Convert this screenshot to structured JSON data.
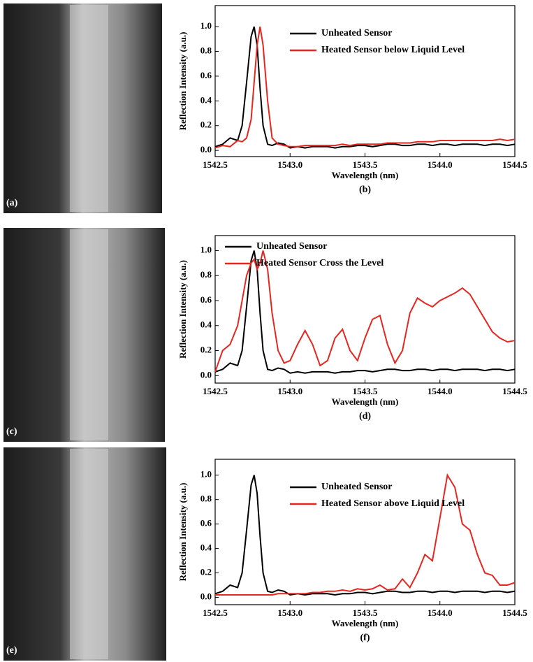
{
  "photos": [
    {
      "label": "(a)"
    },
    {
      "label": "(c)"
    },
    {
      "label": "(e)"
    }
  ],
  "chart_data": [
    {
      "type": "line",
      "caption": "(b)",
      "x_label": "Wavelength (nm)",
      "y_label": "Reflection Intensity (a.u.)",
      "legend": "upper center",
      "x": [
        1542.5,
        1542.55,
        1542.6,
        1542.65,
        1542.68,
        1542.71,
        1542.74,
        1542.76,
        1542.78,
        1542.8,
        1542.82,
        1542.85,
        1542.88,
        1542.92,
        1542.96,
        1543.0,
        1543.05,
        1543.1,
        1543.15,
        1543.2,
        1543.25,
        1543.3,
        1543.35,
        1543.4,
        1543.45,
        1543.5,
        1543.55,
        1543.6,
        1543.65,
        1543.7,
        1543.75,
        1543.8,
        1543.85,
        1543.9,
        1543.95,
        1544.0,
        1544.05,
        1544.1,
        1544.15,
        1544.2,
        1544.25,
        1544.3,
        1544.35,
        1544.4,
        1544.45,
        1544.5
      ],
      "series": [
        {
          "name": "Unheated Sensor",
          "color": "#000000",
          "values": [
            0.03,
            0.05,
            0.1,
            0.08,
            0.2,
            0.55,
            0.92,
            1.0,
            0.85,
            0.5,
            0.2,
            0.05,
            0.04,
            0.06,
            0.05,
            0.02,
            0.03,
            0.02,
            0.03,
            0.03,
            0.03,
            0.02,
            0.03,
            0.03,
            0.04,
            0.04,
            0.03,
            0.04,
            0.05,
            0.05,
            0.04,
            0.04,
            0.05,
            0.05,
            0.04,
            0.05,
            0.05,
            0.04,
            0.05,
            0.05,
            0.05,
            0.04,
            0.05,
            0.05,
            0.04,
            0.05
          ]
        },
        {
          "name": "Heated Sensor below Liquid Level",
          "color": "#e8251f",
          "values": [
            0.02,
            0.04,
            0.03,
            0.08,
            0.07,
            0.1,
            0.25,
            0.55,
            0.85,
            1.0,
            0.85,
            0.4,
            0.1,
            0.05,
            0.04,
            0.03,
            0.03,
            0.04,
            0.04,
            0.04,
            0.04,
            0.04,
            0.05,
            0.04,
            0.05,
            0.05,
            0.05,
            0.05,
            0.06,
            0.06,
            0.06,
            0.06,
            0.07,
            0.07,
            0.07,
            0.08,
            0.08,
            0.08,
            0.08,
            0.08,
            0.08,
            0.08,
            0.08,
            0.09,
            0.08,
            0.09
          ]
        }
      ],
      "xlim": [
        1542.5,
        1544.5
      ],
      "ylim": [
        -0.05,
        1.17
      ],
      "xticks": [
        1542.5,
        {
          "value": 1543,
          "label": "1543.0"
        },
        1543.5,
        {
          "value": 1544,
          "label": "1544.0"
        },
        1544.5
      ],
      "yticks": [
        {
          "value": 0,
          "label": "0.0"
        },
        0.2,
        0.4,
        0.6,
        0.8,
        {
          "value": 1,
          "label": "1.0"
        }
      ]
    },
    {
      "type": "line",
      "caption": "(d)",
      "x_label": "Wavelength (nm)",
      "y_label": "Reflection Intensity (a.u.)",
      "legend": "upper left",
      "x": [
        1542.5,
        1542.55,
        1542.6,
        1542.65,
        1542.68,
        1542.71,
        1542.74,
        1542.76,
        1542.78,
        1542.8,
        1542.82,
        1542.85,
        1542.88,
        1542.92,
        1542.96,
        1543.0,
        1543.05,
        1543.1,
        1543.15,
        1543.2,
        1543.25,
        1543.3,
        1543.35,
        1543.4,
        1543.45,
        1543.5,
        1543.55,
        1543.6,
        1543.65,
        1543.7,
        1543.75,
        1543.8,
        1543.85,
        1543.9,
        1543.95,
        1544.0,
        1544.05,
        1544.1,
        1544.15,
        1544.2,
        1544.25,
        1544.3,
        1544.35,
        1544.4,
        1544.45,
        1544.5
      ],
      "series": [
        {
          "name": "Unheated Sensor",
          "color": "#000000",
          "values": [
            0.03,
            0.05,
            0.1,
            0.08,
            0.2,
            0.55,
            0.92,
            1.0,
            0.85,
            0.5,
            0.2,
            0.05,
            0.04,
            0.06,
            0.05,
            0.02,
            0.03,
            0.02,
            0.03,
            0.03,
            0.03,
            0.02,
            0.03,
            0.03,
            0.04,
            0.04,
            0.03,
            0.04,
            0.05,
            0.05,
            0.04,
            0.04,
            0.05,
            0.05,
            0.04,
            0.05,
            0.05,
            0.04,
            0.05,
            0.05,
            0.05,
            0.04,
            0.05,
            0.05,
            0.04,
            0.05
          ]
        },
        {
          "name": "Heated Sensor Cross the Level",
          "color": "#e8251f",
          "values": [
            0.03,
            0.2,
            0.25,
            0.4,
            0.6,
            0.8,
            0.9,
            0.93,
            0.85,
            0.9,
            1.0,
            0.85,
            0.5,
            0.2,
            0.1,
            0.12,
            0.25,
            0.36,
            0.25,
            0.08,
            0.12,
            0.3,
            0.37,
            0.2,
            0.12,
            0.3,
            0.45,
            0.48,
            0.25,
            0.1,
            0.2,
            0.5,
            0.62,
            0.58,
            0.55,
            0.6,
            0.63,
            0.66,
            0.7,
            0.65,
            0.55,
            0.45,
            0.35,
            0.3,
            0.27,
            0.28
          ]
        }
      ],
      "xlim": [
        1542.5,
        1544.5
      ],
      "ylim": [
        -0.06,
        1.12
      ],
      "xticks": [
        1542.5,
        {
          "value": 1543,
          "label": "1543.0"
        },
        1543.5,
        {
          "value": 1544,
          "label": "1544.0"
        },
        1544.5
      ],
      "yticks": [
        {
          "value": 0,
          "label": "0.0"
        },
        0.2,
        0.4,
        0.6,
        0.8,
        {
          "value": 1,
          "label": "1.0"
        }
      ]
    },
    {
      "type": "line",
      "caption": "(f)",
      "x_label": "Wavelength (nm)",
      "y_label": "Reflection Intensity (a.u.)",
      "legend": "upper center",
      "x": [
        1542.5,
        1542.55,
        1542.6,
        1542.65,
        1542.68,
        1542.71,
        1542.74,
        1542.76,
        1542.78,
        1542.8,
        1542.82,
        1542.85,
        1542.88,
        1542.92,
        1542.96,
        1543.0,
        1543.05,
        1543.1,
        1543.15,
        1543.2,
        1543.25,
        1543.3,
        1543.35,
        1543.4,
        1543.45,
        1543.5,
        1543.55,
        1543.6,
        1543.65,
        1543.7,
        1543.75,
        1543.8,
        1543.85,
        1543.9,
        1543.95,
        1544.0,
        1544.05,
        1544.1,
        1544.15,
        1544.2,
        1544.25,
        1544.3,
        1544.35,
        1544.4,
        1544.45,
        1544.5
      ],
      "series": [
        {
          "name": "Unheated Sensor",
          "color": "#000000",
          "values": [
            0.03,
            0.05,
            0.1,
            0.08,
            0.2,
            0.55,
            0.92,
            1.0,
            0.85,
            0.5,
            0.2,
            0.05,
            0.04,
            0.06,
            0.05,
            0.02,
            0.03,
            0.02,
            0.03,
            0.03,
            0.03,
            0.02,
            0.03,
            0.03,
            0.04,
            0.04,
            0.03,
            0.04,
            0.05,
            0.05,
            0.04,
            0.04,
            0.05,
            0.05,
            0.04,
            0.05,
            0.05,
            0.04,
            0.05,
            0.05,
            0.05,
            0.04,
            0.05,
            0.05,
            0.04,
            0.05
          ]
        },
        {
          "name": "Heated Sensor above Liquid Level",
          "color": "#e8251f",
          "values": [
            0.02,
            0.02,
            0.02,
            0.02,
            0.02,
            0.02,
            0.02,
            0.02,
            0.02,
            0.02,
            0.02,
            0.02,
            0.02,
            0.03,
            0.03,
            0.03,
            0.03,
            0.03,
            0.04,
            0.04,
            0.05,
            0.05,
            0.06,
            0.05,
            0.07,
            0.06,
            0.07,
            0.1,
            0.06,
            0.07,
            0.15,
            0.08,
            0.2,
            0.35,
            0.3,
            0.65,
            1.0,
            0.9,
            0.6,
            0.55,
            0.35,
            0.2,
            0.18,
            0.1,
            0.1,
            0.12
          ]
        }
      ],
      "xlim": [
        1542.5,
        1544.5
      ],
      "ylim": [
        -0.06,
        1.13
      ],
      "xticks": [
        1542.5,
        {
          "value": 1543,
          "label": "1543.0"
        },
        1543.5,
        {
          "value": 1544,
          "label": "1544.0"
        },
        1544.5
      ],
      "yticks": [
        {
          "value": 0,
          "label": "0.0"
        },
        0.2,
        0.4,
        0.6,
        0.8,
        {
          "value": 1,
          "label": "1.0"
        }
      ]
    }
  ]
}
